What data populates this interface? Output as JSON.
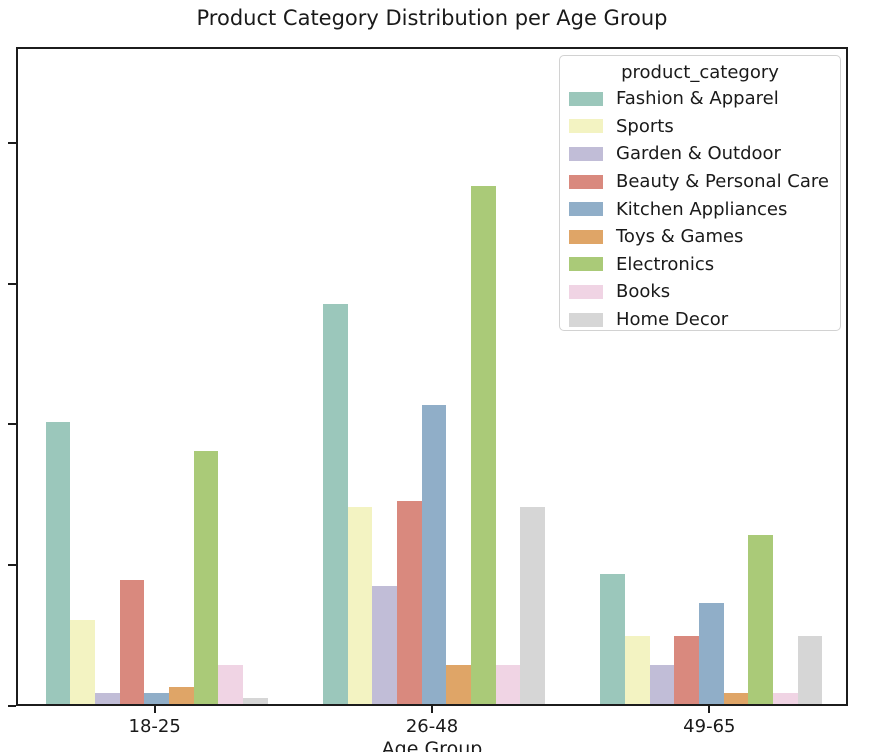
{
  "chart_data": {
    "type": "bar",
    "title": "Product Category Distribution per Age Group",
    "xlabel": "Age Group",
    "ylabel": "",
    "categories": [
      "18-25",
      "26-48",
      "49-65"
    ],
    "legend_title": "product_category",
    "legend_position": "upper right",
    "grid": false,
    "ylim": [
      0,
      117
    ],
    "y_ticks": [
      0,
      25,
      50,
      75,
      100
    ],
    "y_tick_labels_visible": false,
    "series": [
      {
        "name": "Fashion & Apparel",
        "color": "#9bc7bb",
        "values": [
          50,
          71,
          23
        ]
      },
      {
        "name": "Sports",
        "color": "#f3f3c2",
        "values": [
          15,
          35,
          12
        ]
      },
      {
        "name": "Garden & Outdoor",
        "color": "#c1bdd7",
        "values": [
          2,
          21,
          7
        ]
      },
      {
        "name": "Beauty & Personal Care",
        "color": "#d9897e",
        "values": [
          22,
          36,
          12
        ]
      },
      {
        "name": "Kitchen Appliances",
        "color": "#90aec8",
        "values": [
          2,
          53,
          18
        ]
      },
      {
        "name": "Toys & Games",
        "color": "#dfa567",
        "values": [
          3,
          7,
          2
        ]
      },
      {
        "name": "Electronics",
        "color": "#aaca78",
        "values": [
          45,
          92,
          30
        ]
      },
      {
        "name": "Books",
        "color": "#f0d4e4",
        "values": [
          7,
          7,
          2
        ]
      },
      {
        "name": "Home Decor",
        "color": "#d6d6d6",
        "values": [
          1,
          35,
          12
        ]
      }
    ]
  }
}
